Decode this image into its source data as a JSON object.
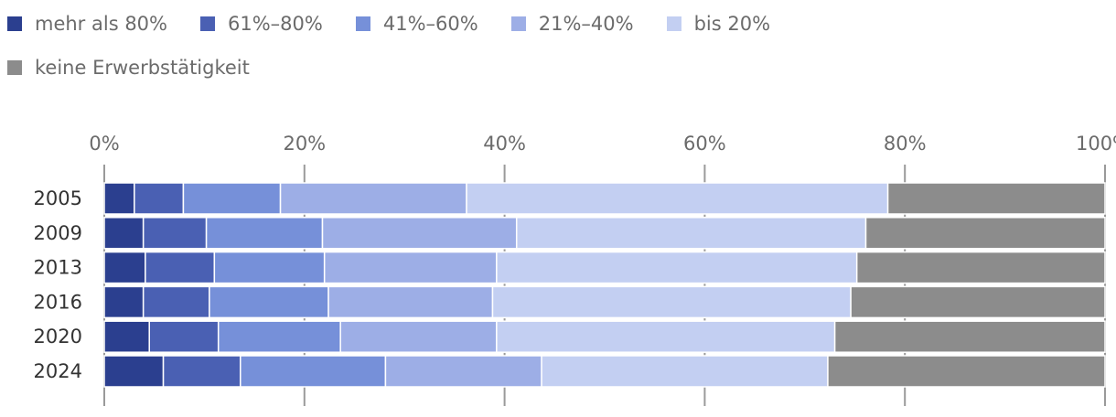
{
  "chart_data": {
    "type": "bar",
    "orientation": "horizontal",
    "stacked": true,
    "title": "",
    "xlabel": "",
    "ylabel": "",
    "xlim": [
      0,
      100
    ],
    "x_ticks": [
      "0%",
      "20%",
      "40%",
      "60%",
      "80%",
      "100%"
    ],
    "x_tick_values": [
      0,
      20,
      40,
      60,
      80,
      100
    ],
    "categories": [
      "2005",
      "2009",
      "2013",
      "2016",
      "2020",
      "2024"
    ],
    "legend_position": "top-left",
    "series": [
      {
        "name": "mehr als 80%",
        "color": "#2b3f8f",
        "values": [
          3.0,
          3.9,
          4.1,
          3.9,
          4.5,
          5.9
        ]
      },
      {
        "name": "61%–80%",
        "color": "#4a60b3",
        "values": [
          4.9,
          6.3,
          6.9,
          6.6,
          6.9,
          7.7
        ]
      },
      {
        "name": "41%–60%",
        "color": "#7690d9",
        "values": [
          9.7,
          11.6,
          11.0,
          11.9,
          12.2,
          14.5
        ]
      },
      {
        "name": "21%–40%",
        "color": "#9daee6",
        "values": [
          18.6,
          19.4,
          17.2,
          16.4,
          15.6,
          15.6
        ]
      },
      {
        "name": "bis 20%",
        "color": "#c3cff2",
        "values": [
          42.1,
          34.9,
          36.0,
          35.8,
          33.8,
          28.6
        ]
      },
      {
        "name": "keine Erwerbstätigkeit",
        "color": "#8c8c8c",
        "values": [
          21.7,
          23.9,
          24.8,
          25.4,
          27.0,
          27.7
        ]
      }
    ]
  }
}
